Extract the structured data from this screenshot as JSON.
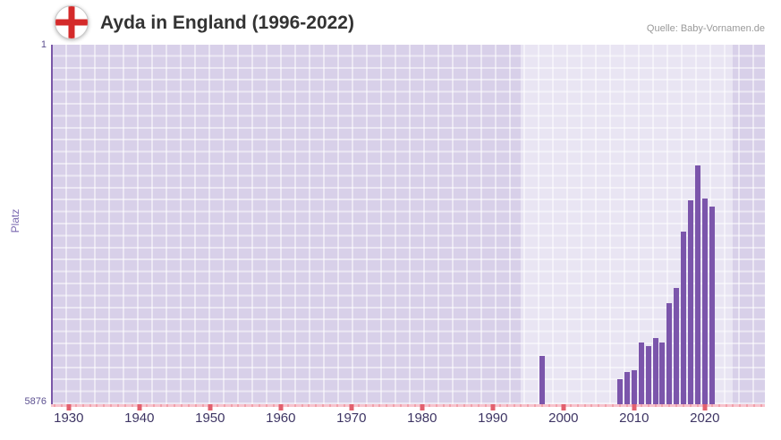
{
  "header": {
    "title": "Ayda in England (1996-2022)",
    "source": "Quelle: Baby-Vornamen.de"
  },
  "chart_data": {
    "type": "bar",
    "title": "Ayda in England (1996-2022)",
    "ylabel": "Platz",
    "y_axis_inverted": true,
    "y_range": [
      1,
      5876
    ],
    "y_tick_labels": [
      "1",
      "5876"
    ],
    "x_range": [
      1927.5,
      2028.5
    ],
    "x_ticks": [
      1930,
      1940,
      1950,
      1960,
      1970,
      1980,
      1990,
      2000,
      2010,
      2020
    ],
    "highlight_band": [
      1994,
      2024
    ],
    "grid": true,
    "legend": false,
    "points": [
      {
        "year": 1997,
        "rank": 5090
      },
      {
        "year": 2008,
        "rank": 5460
      },
      {
        "year": 2009,
        "rank": 5350
      },
      {
        "year": 2010,
        "rank": 5320
      },
      {
        "year": 2011,
        "rank": 4870
      },
      {
        "year": 2012,
        "rank": 4930
      },
      {
        "year": 2013,
        "rank": 4790
      },
      {
        "year": 2014,
        "rank": 4860
      },
      {
        "year": 2015,
        "rank": 4230
      },
      {
        "year": 2016,
        "rank": 3970
      },
      {
        "year": 2017,
        "rank": 3060
      },
      {
        "year": 2018,
        "rank": 2550
      },
      {
        "year": 2019,
        "rank": 1970
      },
      {
        "year": 2020,
        "rank": 2510
      },
      {
        "year": 2021,
        "rank": 2650
      }
    ],
    "colors": {
      "bar": "#7b55ab",
      "plot_bg": "#d8d0e9",
      "grid_line": "rgba(255,255,255,0.5)",
      "band": "rgba(255,255,255,0.45)",
      "x_axis_line": "#f8c3cd",
      "x_axis_tick": "#e2606e",
      "y_axis_line": "#7a57a8",
      "tick_label": "#3e3564",
      "y_tick_label": "#5c5090",
      "y_title": "#7a68b0",
      "title": "#333333",
      "source": "#999999",
      "flag_red": "#d42a2a"
    }
  }
}
